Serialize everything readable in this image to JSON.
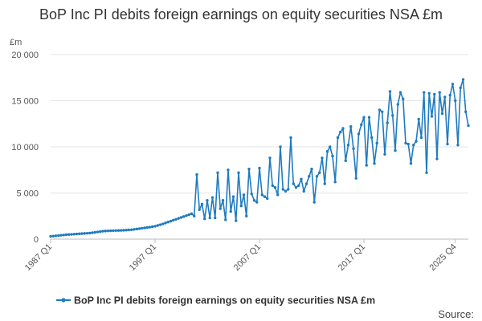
{
  "chart_data": {
    "type": "line",
    "title": "BoP Inc PI debits foreign earnings on equity securities NSA £m",
    "ylabel": "£m",
    "xlabel": "",
    "ylim": [
      0,
      20000
    ],
    "y_ticks": [
      0,
      5000,
      10000,
      15000,
      20000
    ],
    "y_tick_labels": [
      "0",
      "5 000",
      "10 000",
      "15 000",
      "20 000"
    ],
    "x_tick_labels": [
      "1987 Q1",
      "1997 Q1",
      "2007 Q1",
      "2017 Q1",
      "2025 Q4"
    ],
    "x_tick_indices": [
      0,
      40,
      80,
      120,
      155
    ],
    "grid": true,
    "legend_position": "bottom",
    "color": "#1f7bbf",
    "series": [
      {
        "name": "BoP Inc PI debits foreign earnings on equity securities NSA £m",
        "start": "1987 Q1",
        "values": [
          300,
          330,
          360,
          390,
          420,
          450,
          480,
          500,
          520,
          540,
          560,
          580,
          600,
          620,
          640,
          660,
          700,
          740,
          780,
          820,
          860,
          880,
          900,
          910,
          920,
          930,
          940,
          950,
          960,
          980,
          1000,
          1020,
          1060,
          1100,
          1140,
          1180,
          1220,
          1260,
          1300,
          1350,
          1400,
          1480,
          1560,
          1650,
          1750,
          1850,
          1950,
          2050,
          2150,
          2250,
          2350,
          2450,
          2550,
          2650,
          2750,
          2500,
          7000,
          3200,
          3800,
          2200,
          4200,
          2300,
          4500,
          2300,
          7200,
          3300,
          4200,
          2100,
          7500,
          3000,
          4600,
          2000,
          7200,
          3600,
          4800,
          2500,
          7600,
          4900,
          4200,
          4000,
          7700,
          4800,
          4600,
          4400,
          8800,
          5800,
          5600,
          4800,
          10000,
          5400,
          5200,
          5400,
          11000,
          6000,
          5600,
          5800,
          6500,
          5200,
          6000,
          6800,
          7600,
          4000,
          6800,
          7200,
          8800,
          6000,
          9500,
          10000,
          9000,
          6200,
          11000,
          11600,
          12000,
          8500,
          10200,
          12200,
          9800,
          6600,
          11400,
          12400,
          13200,
          8000,
          13200,
          11000,
          8200,
          10400,
          14000,
          13800,
          9200,
          12600,
          16000,
          13400,
          9600,
          14600,
          15900,
          15200,
          10400,
          10300,
          8200,
          10200,
          10600,
          13000,
          11000,
          15900,
          7200,
          15800,
          13300,
          15700,
          8700,
          15900,
          13600,
          15400,
          10300,
          15600,
          16800,
          15000,
          10200,
          16400,
          17300,
          13800,
          12300
        ]
      }
    ]
  },
  "legend": {
    "label": "BoP Inc PI debits foreign earnings on equity securities NSA £m"
  },
  "source": {
    "label": "Source:"
  }
}
